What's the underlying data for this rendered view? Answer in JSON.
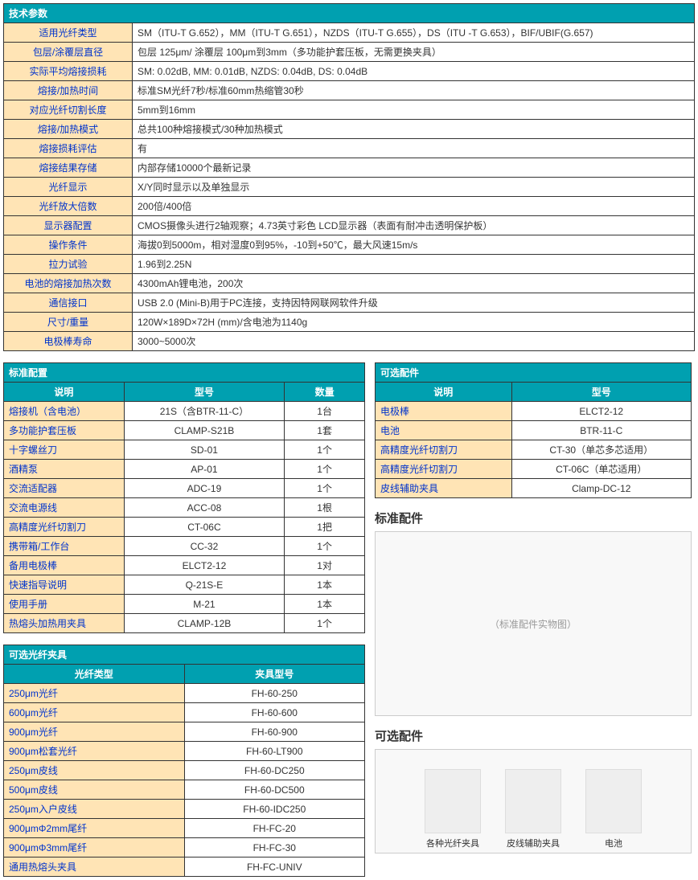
{
  "specs": {
    "title": "技术参数",
    "rows": [
      {
        "label": "适用光纤类型",
        "value": "SM（ITU-T G.652），MM（ITU-T G.651），NZDS（ITU-T G.655），DS（ITU -T G.653），BIF/UBIF(G.657)"
      },
      {
        "label": "包层/涂覆层直径",
        "value": "包层 125μm/ 涂覆层 100μm到3mm（多功能护套压板，无需更换夹具）"
      },
      {
        "label": "实际平均熔接损耗",
        "value": "SM: 0.02dB, MM: 0.01dB, NZDS: 0.04dB, DS: 0.04dB"
      },
      {
        "label": "熔接/加热时间",
        "value": "标准SM光纤7秒/标准60mm热缩管30秒"
      },
      {
        "label": "对应光纤切割长度",
        "value": "5mm到16mm"
      },
      {
        "label": "熔接/加热模式",
        "value": "总共100种熔接模式/30种加热模式"
      },
      {
        "label": "熔接损耗评估",
        "value": "有"
      },
      {
        "label": "熔接结果存储",
        "value": "内部存储10000个最新记录"
      },
      {
        "label": "光纤显示",
        "value": "X/Y同时显示以及单独显示"
      },
      {
        "label": "光纤放大倍数",
        "value": "200倍/400倍"
      },
      {
        "label": "显示器配置",
        "value": "CMOS摄像头进行2轴观察；4.73英寸彩色 LCD显示器（表面有耐冲击透明保护板）"
      },
      {
        "label": "操作条件",
        "value": "海拔0到5000m，相对湿度0到95%，-10到+50℃，最大风速15m/s"
      },
      {
        "label": "拉力试验",
        "value": "1.96到2.25N"
      },
      {
        "label": "电池的熔接加热次数",
        "value": "4300mAh锂电池，200次"
      },
      {
        "label": "通信接口",
        "value": "USB 2.0 (Mini-B)用于PC连接，支持因特网联网软件升级"
      },
      {
        "label": "尺寸/重量",
        "value": "120W×189D×72H (mm)/含电池为1140g"
      },
      {
        "label": "电极棒寿命",
        "value": "3000~5000次"
      }
    ],
    "label_width": "160px"
  },
  "standard_config": {
    "title": "标准配置",
    "headers": [
      "说明",
      "型号",
      "数量"
    ],
    "col_widths": [
      "150px",
      "200px",
      "100px"
    ],
    "rows": [
      [
        "熔接机（含电池）",
        "21S（含BTR-11-C）",
        "1台"
      ],
      [
        "多功能护套压板",
        "CLAMP-S21B",
        "1套"
      ],
      [
        "十字螺丝刀",
        "SD-01",
        "1个"
      ],
      [
        "酒精泵",
        "AP-01",
        "1个"
      ],
      [
        "交流适配器",
        "ADC-19",
        "1个"
      ],
      [
        "交流电源线",
        "ACC-08",
        "1根"
      ],
      [
        "高精度光纤切割刀",
        "CT-06C",
        "1把"
      ],
      [
        "携带箱/工作台",
        "CC-32",
        "1个"
      ],
      [
        "备用电极棒",
        "ELCT2-12",
        "1对"
      ],
      [
        "快速指导说明",
        "Q-21S-E",
        "1本"
      ],
      [
        "使用手册",
        "M-21",
        "1本"
      ],
      [
        "热熔头加热用夹具",
        "CLAMP-12B",
        "1个"
      ]
    ]
  },
  "optional_accessories": {
    "title": "可选配件",
    "headers": [
      "说明",
      "型号"
    ],
    "col_widths": [
      "170px",
      "224px"
    ],
    "rows": [
      [
        "电极棒",
        "ELCT2-12"
      ],
      [
        "电池",
        "BTR-11-C"
      ],
      [
        "高精度光纤切割刀",
        "CT-30（单芯多芯适用）"
      ],
      [
        "高精度光纤切割刀",
        "CT-06C（单芯适用）"
      ],
      [
        "皮线辅助夹具",
        "Clamp-DC-12"
      ]
    ]
  },
  "optional_holders": {
    "title": "可选光纤夹具",
    "headers": [
      "光纤类型",
      "夹具型号"
    ],
    "col_widths": [
      "225px",
      "225px"
    ],
    "rows": [
      [
        "250μm光纤",
        "FH-60-250"
      ],
      [
        "600μm光纤",
        "FH-60-600"
      ],
      [
        "900μm光纤",
        "FH-60-900"
      ],
      [
        "900μm松套光纤",
        "FH-60-LT900"
      ],
      [
        "250μm皮线",
        "FH-60-DC250"
      ],
      [
        "500μm皮线",
        "FH-60-DC500"
      ],
      [
        "250μm入户皮线",
        "FH-60-IDC250"
      ],
      [
        "900μmΦ2mm尾纤",
        "FH-FC-20"
      ],
      [
        "900μmΦ3mm尾纤",
        "FH-FC-30"
      ],
      [
        "通用热熔头夹具",
        "FH-FC-UNIV"
      ]
    ]
  },
  "img_sections": {
    "standard_title": "标准配件",
    "optional_title": "可选配件",
    "placeholder1": "（标准配件实物图）",
    "items": [
      "各种光纤夹具",
      "皮线辅助夹具",
      "电池"
    ]
  },
  "colors": {
    "header_bg": "#00a0b0",
    "label_bg": "#ffe4b5",
    "label_fg": "#0033cc",
    "border": "#333333"
  }
}
